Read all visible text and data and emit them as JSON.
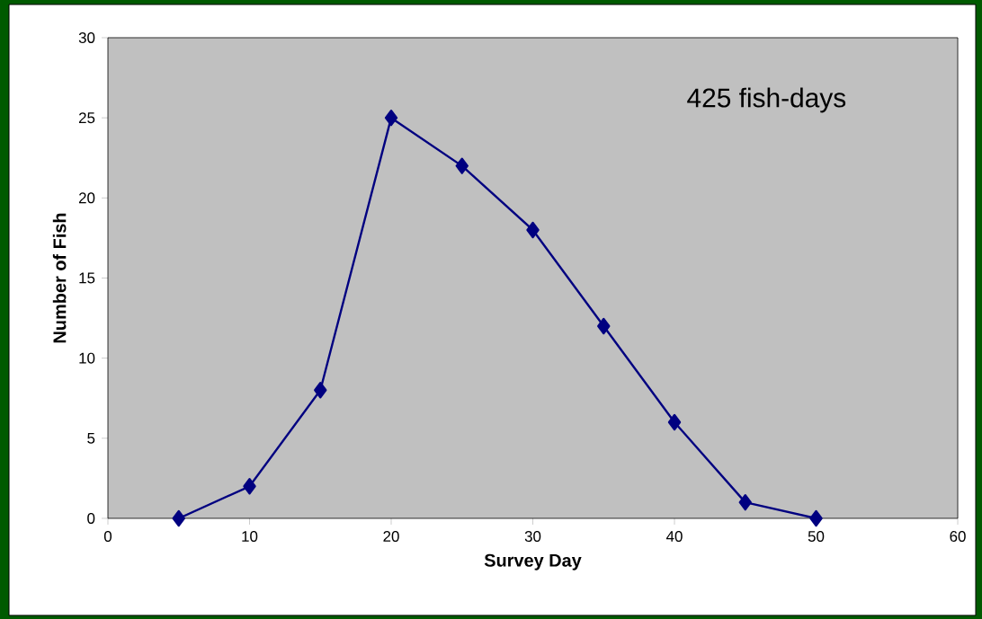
{
  "chart_data": {
    "type": "line",
    "xlabel": "Survey Day",
    "ylabel": "Number of Fish",
    "annotations": [
      "425 fish-days"
    ],
    "x": [
      5,
      10,
      15,
      20,
      25,
      30,
      35,
      40,
      45,
      50
    ],
    "series": [
      {
        "color": "#000080",
        "values": [
          0,
          2,
          8,
          25,
          22,
          18,
          12,
          6,
          1,
          0
        ]
      }
    ],
    "xlim": [
      0,
      60
    ],
    "ylim": [
      0,
      30
    ],
    "xticks": [
      0,
      10,
      20,
      30,
      40,
      50,
      60
    ],
    "yticks": [
      0,
      5,
      10,
      15,
      20,
      25,
      30
    ],
    "marker": "diamond",
    "line_style": "solid",
    "grid": false
  }
}
